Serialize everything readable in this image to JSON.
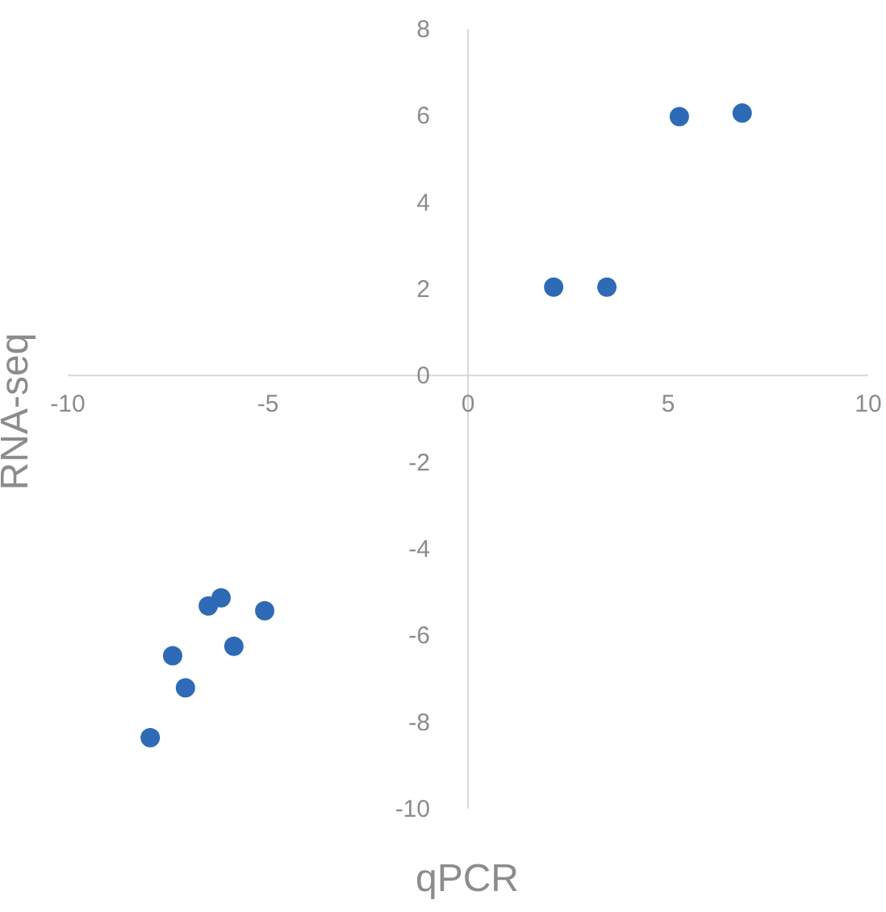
{
  "chart_data": {
    "type": "scatter",
    "xlabel": "qPCR",
    "ylabel": "RNA-seq",
    "x": [
      2.14,
      3.47,
      5.28,
      6.85,
      -6.17,
      -6.49,
      -5.08,
      -7.38,
      -5.85,
      -7.06,
      -7.94
    ],
    "values": [
      2.04,
      2.04,
      5.98,
      6.06,
      -5.13,
      -5.32,
      -5.43,
      -6.47,
      -6.25,
      -7.21,
      -8.36
    ],
    "color": "#2e6ab6",
    "marker": "circle",
    "grid": false,
    "legend": false,
    "xlim": [
      -10,
      10
    ],
    "xticks": [
      -10,
      -5,
      0,
      5,
      10
    ],
    "ylim": [
      -10,
      8
    ],
    "yticks": [
      -10,
      -8,
      -6,
      -4,
      -2,
      0,
      2,
      4,
      6,
      8
    ]
  }
}
